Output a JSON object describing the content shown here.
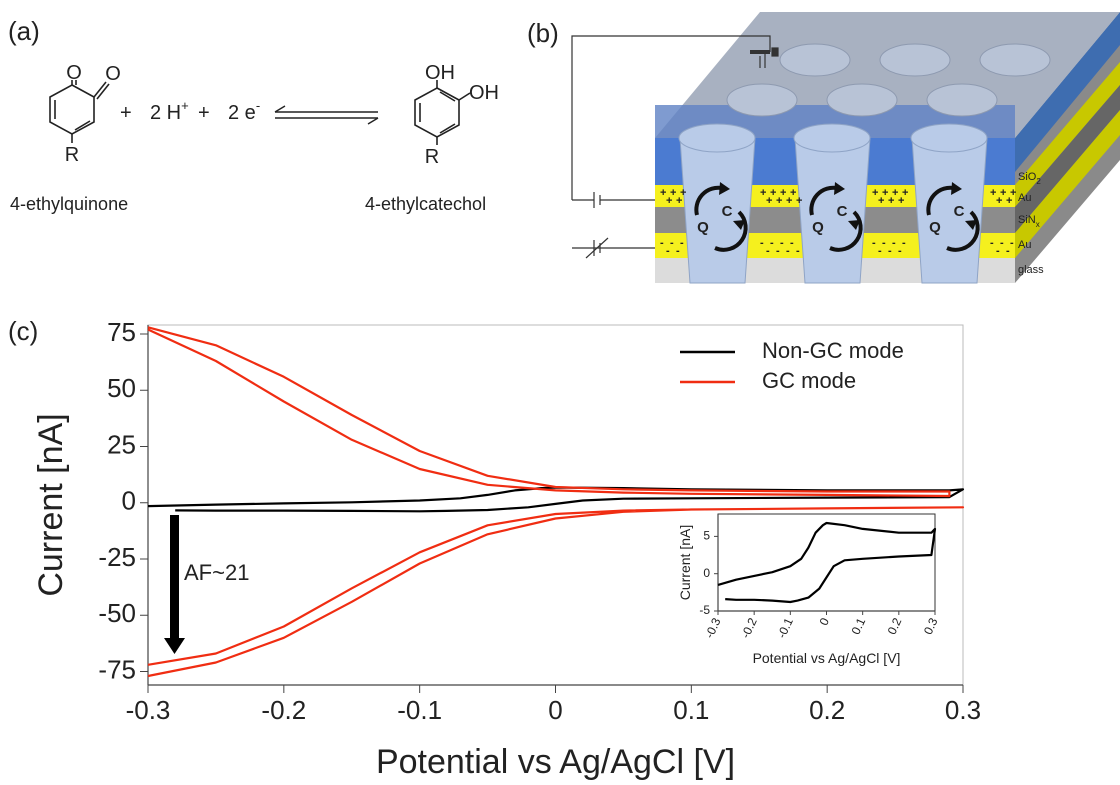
{
  "panel_a": {
    "label": "(a)",
    "reactant": {
      "atoms": [
        "O",
        "O",
        "R"
      ],
      "name": "4-ethylquinone"
    },
    "equation": [
      {
        "text": "+"
      },
      {
        "text": "2 H",
        "sup": "+"
      },
      {
        "text": "+"
      },
      {
        "text": "2 e",
        "sup": "-"
      }
    ],
    "product": {
      "atoms": [
        "OH",
        "OH",
        "R"
      ],
      "name": "4-ethylcatechol"
    }
  },
  "panel_b": {
    "label": "(b)",
    "layers": [
      {
        "text": "SiO",
        "sub": "2"
      },
      {
        "text": "Au"
      },
      {
        "text": "SiN",
        "sub": "x"
      },
      {
        "text": "Au"
      },
      {
        "text": "glass"
      }
    ],
    "charges": [
      "+",
      "-"
    ],
    "cycle": [
      "Q",
      "C"
    ]
  },
  "panel_c": {
    "label": "(c)"
  },
  "chart_data": [
    {
      "type": "line",
      "x_label": "Potential vs Ag/AgCl [V]",
      "y_label": "Current [nA]",
      "xlim": [
        -0.3,
        0.3
      ],
      "ylim": [
        -81,
        79
      ],
      "xticks": [
        -0.3,
        -0.2,
        -0.1,
        0,
        0.1,
        0.2,
        0.3
      ],
      "yticks": [
        -75,
        -50,
        -25,
        0,
        25,
        50,
        75
      ],
      "legend": "upper right",
      "annotation": "AF~21",
      "series": [
        {
          "name": "Non-GC mode",
          "color": "#000000",
          "x": [
            -0.3,
            -0.25,
            -0.2,
            -0.15,
            -0.1,
            -0.07,
            -0.05,
            -0.03,
            -0.01,
            0,
            0.05,
            0.1,
            0.2,
            0.29,
            0.3,
            0.29,
            0.2,
            0.1,
            0.05,
            0.02,
            0,
            -0.02,
            -0.05,
            -0.08,
            -0.1,
            -0.15,
            -0.2,
            -0.25,
            -0.28
          ],
          "values": [
            -1.5,
            -0.8,
            -0.3,
            0.2,
            1,
            2,
            3.5,
            5.5,
            6.5,
            6.8,
            6.5,
            6,
            5.5,
            5.5,
            6,
            2.5,
            2.3,
            2,
            1.8,
            1,
            -0.5,
            -2,
            -3.2,
            -3.6,
            -3.8,
            -3.6,
            -3.5,
            -3.5,
            -3.4
          ]
        },
        {
          "name": "GC mode",
          "color": "#f02d12",
          "x": [
            -0.3,
            -0.25,
            -0.2,
            -0.15,
            -0.1,
            -0.05,
            0,
            0.05,
            0.1,
            0.2,
            0.29,
            0.29,
            0.2,
            0.1,
            0.05,
            0,
            -0.05,
            -0.1,
            -0.15,
            -0.2,
            -0.25,
            -0.3,
            null,
            -0.3,
            -0.25,
            -0.2,
            -0.15,
            -0.1,
            -0.05,
            0,
            0.05,
            0.1,
            0.2,
            0.3,
            0.3,
            0.2,
            0.1,
            0.05,
            0,
            -0.05,
            -0.1,
            -0.15,
            -0.2,
            -0.25,
            -0.3
          ],
          "values": [
            78,
            70,
            56,
            39,
            23,
            12,
            7,
            6,
            5.5,
            5,
            5,
            3,
            3.5,
            4,
            4.5,
            5.5,
            8,
            15,
            28,
            45,
            63,
            77,
            null,
            -72,
            -67,
            -55,
            -38,
            -22,
            -10,
            -5,
            -3.5,
            -3,
            -2.5,
            -2,
            -2,
            -2.5,
            -3,
            -4,
            -7,
            -14,
            -27,
            -44,
            -60,
            -71,
            -77
          ]
        }
      ]
    },
    {
      "type": "line",
      "x_label": "Potential vs Ag/AgCl [V]",
      "y_label": "Current [nA]",
      "xlim": [
        -0.3,
        0.3
      ],
      "ylim": [
        -5,
        8
      ],
      "xticks": [
        -0.3,
        -0.2,
        -0.1,
        0,
        0.1,
        0.2,
        0.3
      ],
      "yticks": [
        -5,
        0,
        5
      ],
      "series": [
        {
          "color": "#000000",
          "x": [
            -0.3,
            -0.25,
            -0.2,
            -0.15,
            -0.1,
            -0.07,
            -0.05,
            -0.03,
            -0.01,
            0,
            0.05,
            0.1,
            0.2,
            0.29,
            0.3,
            0.29,
            0.2,
            0.1,
            0.05,
            0.02,
            0,
            -0.02,
            -0.05,
            -0.08,
            -0.1,
            -0.15,
            -0.2,
            -0.25,
            -0.28
          ],
          "values": [
            -1.5,
            -0.8,
            -0.3,
            0.2,
            1,
            2,
            3.5,
            5.5,
            6.5,
            6.8,
            6.5,
            6,
            5.5,
            5.5,
            6,
            2.5,
            2.3,
            2,
            1.8,
            1,
            -0.5,
            -2,
            -3.2,
            -3.6,
            -3.8,
            -3.6,
            -3.5,
            -3.5,
            -3.4
          ]
        }
      ]
    }
  ]
}
